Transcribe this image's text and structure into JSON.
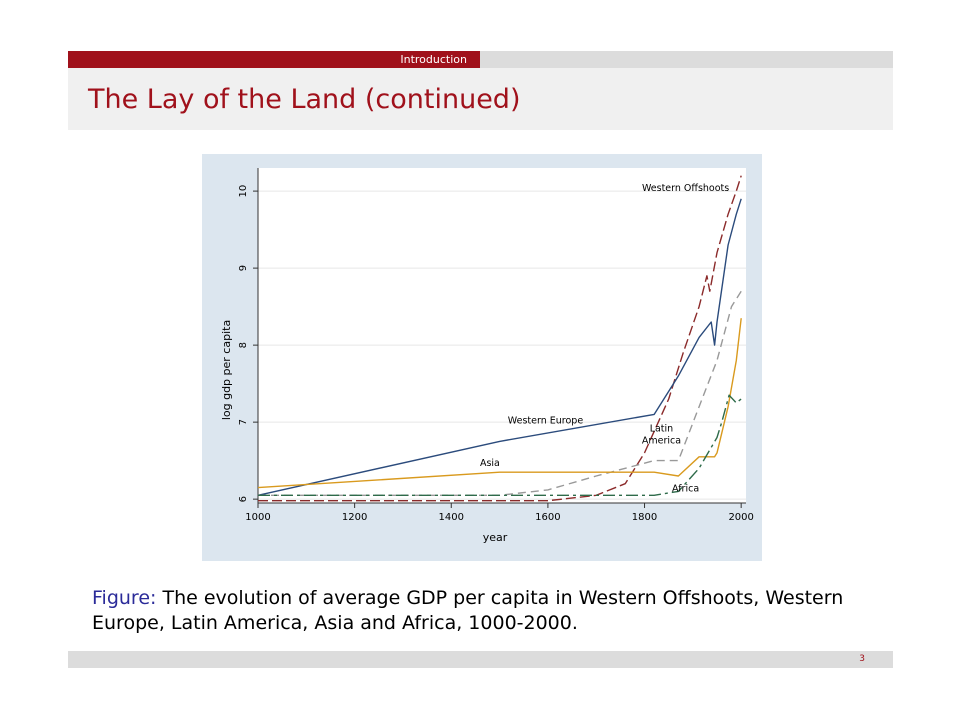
{
  "header": {
    "section": "Introduction",
    "title": "The Lay of the Land (continued)"
  },
  "caption": {
    "label": "Figure:",
    "text": "The evolution of average GDP per capita in Western Offshoots, Western Europe, Latin America, Asia and Africa, 1000-2000."
  },
  "footer": {
    "page": "3"
  },
  "colors": {
    "accent": "#a0111b",
    "figure_label": "#2b2b99",
    "chart_background": "#dce6ef"
  },
  "chart_data": {
    "type": "line",
    "title": "",
    "xlabel": "year",
    "ylabel": "log gdp per capita",
    "xlim": [
      1000,
      2010
    ],
    "ylim": [
      5.95,
      10.3
    ],
    "xticks": [
      1000,
      1200,
      1400,
      1600,
      1800,
      2000
    ],
    "yticks": [
      6,
      7,
      8,
      9,
      10
    ],
    "grid": "horizontal",
    "series": [
      {
        "name": "Western Offshoots",
        "color": "#8b2a2a",
        "dash": "10,4",
        "points": [
          [
            1000,
            5.98
          ],
          [
            1600,
            5.98
          ],
          [
            1700,
            6.05
          ],
          [
            1760,
            6.2
          ],
          [
            1800,
            6.6
          ],
          [
            1850,
            7.3
          ],
          [
            1880,
            7.9
          ],
          [
            1913,
            8.5
          ],
          [
            1929,
            8.9
          ],
          [
            1935,
            8.7
          ],
          [
            1950,
            9.2
          ],
          [
            1973,
            9.7
          ],
          [
            1990,
            10.0
          ],
          [
            2000,
            10.2
          ]
        ]
      },
      {
        "name": "Western Europe",
        "color": "#2b4b7c",
        "dash": "",
        "points": [
          [
            1000,
            6.05
          ],
          [
            1500,
            6.75
          ],
          [
            1820,
            7.1
          ],
          [
            1870,
            7.6
          ],
          [
            1913,
            8.1
          ],
          [
            1938,
            8.3
          ],
          [
            1945,
            8.0
          ],
          [
            1950,
            8.3
          ],
          [
            1973,
            9.3
          ],
          [
            1990,
            9.7
          ],
          [
            2000,
            9.9
          ]
        ]
      },
      {
        "name": "Latin America",
        "color": "#999999",
        "dash": "8,5",
        "points": [
          [
            1000,
            6.05
          ],
          [
            1500,
            6.05
          ],
          [
            1600,
            6.12
          ],
          [
            1700,
            6.3
          ],
          [
            1820,
            6.5
          ],
          [
            1870,
            6.5
          ],
          [
            1913,
            7.2
          ],
          [
            1950,
            7.8
          ],
          [
            1980,
            8.5
          ],
          [
            2000,
            8.7
          ]
        ]
      },
      {
        "name": "Asia",
        "color": "#d99a1e",
        "dash": "",
        "points": [
          [
            1000,
            6.15
          ],
          [
            1500,
            6.35
          ],
          [
            1820,
            6.35
          ],
          [
            1870,
            6.3
          ],
          [
            1913,
            6.55
          ],
          [
            1945,
            6.55
          ],
          [
            1950,
            6.6
          ],
          [
            1973,
            7.2
          ],
          [
            1990,
            7.8
          ],
          [
            2000,
            8.35
          ]
        ]
      },
      {
        "name": "Africa",
        "color": "#2e6b4a",
        "dash": "12,4,3,4",
        "points": [
          [
            1000,
            6.05
          ],
          [
            1820,
            6.05
          ],
          [
            1870,
            6.1
          ],
          [
            1913,
            6.4
          ],
          [
            1950,
            6.8
          ],
          [
            1960,
            7.0
          ],
          [
            1975,
            7.35
          ],
          [
            1990,
            7.25
          ],
          [
            2000,
            7.3
          ]
        ]
      }
    ],
    "annotations": [
      {
        "text": "Western Offshoots",
        "x": 1885,
        "y": 10.0
      },
      {
        "text": "Western Europe",
        "x": 1595,
        "y": 6.98
      },
      {
        "text": "Latin",
        "x": 1835,
        "y": 6.88
      },
      {
        "text": "America",
        "x": 1835,
        "y": 6.72
      },
      {
        "text": "Asia",
        "x": 1480,
        "y": 6.43
      },
      {
        "text": "Africa",
        "x": 1885,
        "y": 6.1
      }
    ]
  }
}
